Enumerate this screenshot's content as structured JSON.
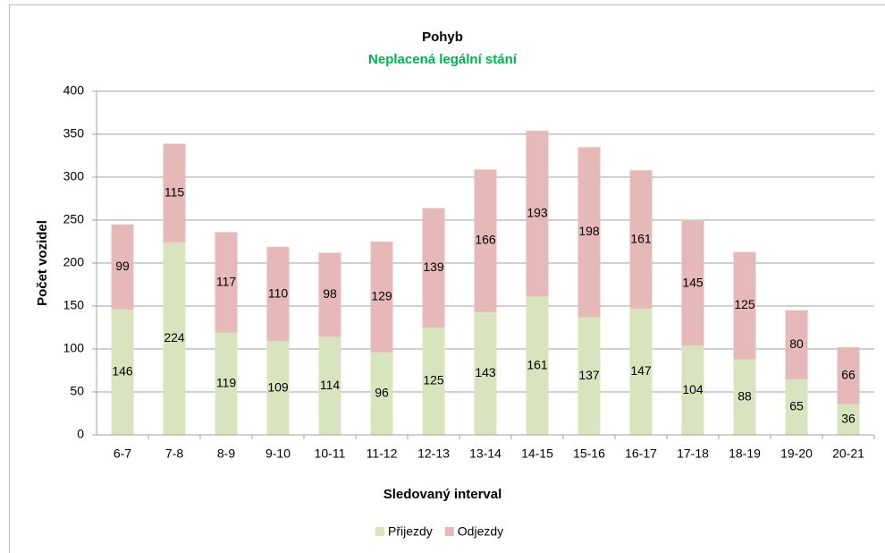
{
  "chart_data": {
    "type": "bar",
    "stacked": true,
    "title": "Pohyb",
    "subtitle": "Neplacená legální stání",
    "subtitle_color": "#00b050",
    "x_label": "Sledovaný interval",
    "y_label": "Počet vozidel",
    "categories": [
      "6-7",
      "7-8",
      "8-9",
      "9-10",
      "10-11",
      "11-12",
      "12-13",
      "13-14",
      "14-15",
      "15-16",
      "16-17",
      "17-18",
      "18-19",
      "19-20",
      "20-21"
    ],
    "series": [
      {
        "name": "Přijezdy",
        "color": "#d7e4bd",
        "values": [
          146,
          224,
          119,
          109,
          114,
          96,
          125,
          143,
          161,
          137,
          147,
          104,
          88,
          65,
          36
        ]
      },
      {
        "name": "Odjezdy",
        "color": "#e6b9b8",
        "values": [
          99,
          115,
          117,
          110,
          98,
          129,
          139,
          166,
          193,
          198,
          161,
          145,
          125,
          80,
          66
        ]
      }
    ],
    "ylim": [
      0,
      400
    ],
    "yticks": [
      0,
      50,
      100,
      150,
      200,
      250,
      300,
      350,
      400
    ],
    "grid": true,
    "legend": "bottom"
  }
}
